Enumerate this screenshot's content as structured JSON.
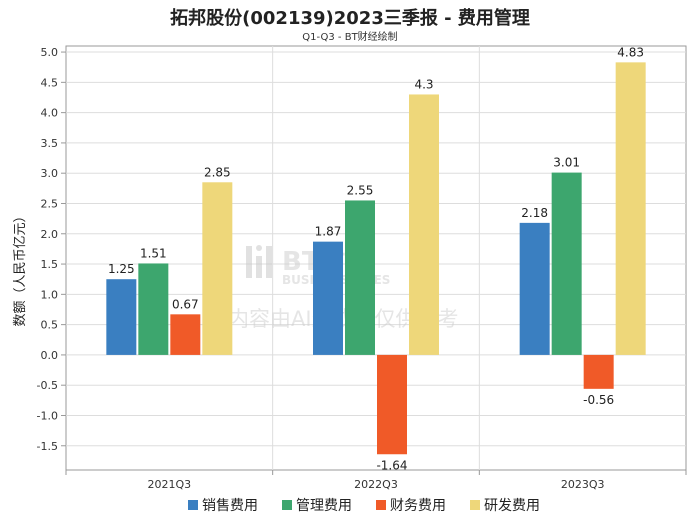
{
  "chart_data": {
    "type": "bar",
    "title": "拓邦股份(002139)2023三季报 - 费用管理",
    "subtitle": "Q1-Q3 - BT财经绘制",
    "xlabel": "",
    "ylabel": "数额（人民币亿元）",
    "ylim": [
      -1.9,
      5.1
    ],
    "yticks": [
      5.0,
      4.5,
      4.0,
      3.5,
      3.0,
      2.5,
      2.0,
      1.5,
      1.0,
      0.5,
      0.0,
      -0.5,
      -1.0,
      -1.5
    ],
    "ytick_labels": [
      "5.0",
      "4.5",
      "4.0",
      "3.5",
      "3.0",
      "2.5",
      "2.0",
      "1.5",
      "1.0",
      "0.5",
      "0.0",
      "-0.5",
      "-1.0",
      "-1.5"
    ],
    "categories": [
      "2021Q3",
      "2022Q3",
      "2023Q3"
    ],
    "series": [
      {
        "name": "销售费用",
        "color": "#3A7FC1",
        "values": [
          1.25,
          1.87,
          2.18
        ],
        "labels": [
          "1.25",
          "1.87",
          "2.18"
        ]
      },
      {
        "name": "管理费用",
        "color": "#3DA66E",
        "values": [
          1.51,
          2.55,
          3.01
        ],
        "labels": [
          "1.51",
          "2.55",
          "3.01"
        ]
      },
      {
        "name": "财务费用",
        "color": "#F05A28",
        "values": [
          0.67,
          -1.64,
          -0.56
        ],
        "labels": [
          "0.67",
          "-1.64",
          "-0.56"
        ]
      },
      {
        "name": "研发费用",
        "color": "#EED77A",
        "values": [
          2.85,
          4.3,
          4.83
        ],
        "labels": [
          "2.85",
          "4.3",
          "4.83"
        ]
      }
    ],
    "legend": "bottom",
    "grid": true
  },
  "watermark": {
    "brand": "BT财经",
    "brand_en": "BUSINESSTIMES",
    "notice": "内容由AI生成，仅供参考"
  }
}
